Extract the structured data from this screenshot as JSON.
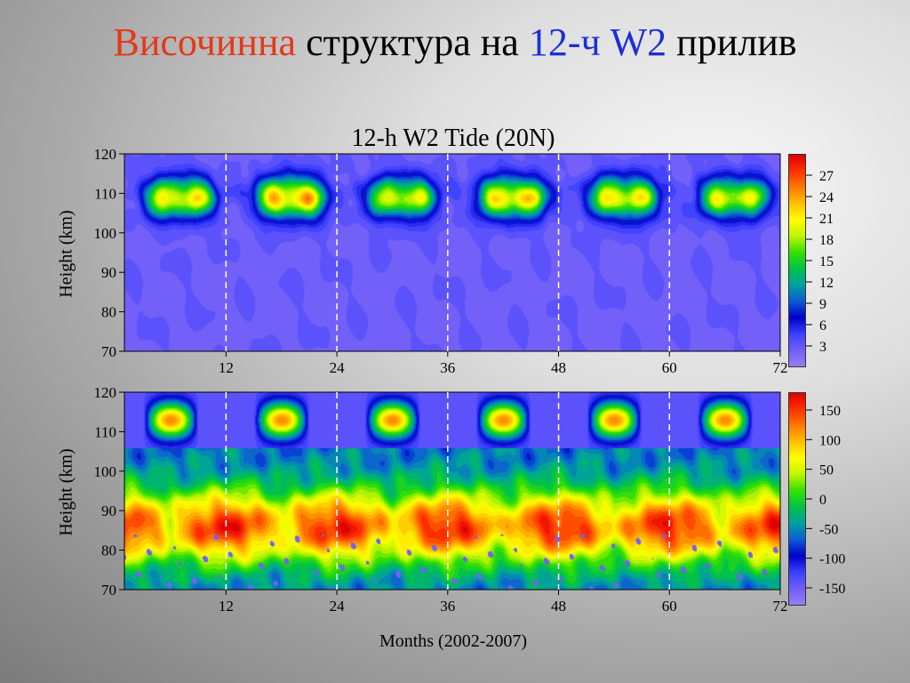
{
  "slide": {
    "title_part1": "Височинна",
    "title_part2": "структура на",
    "title_part3": "12-ч",
    "title_part4": "W2",
    "title_part5": "прилив"
  },
  "chart_data": [
    {
      "type": "heatmap",
      "title": "12-h W2 Tide  (20N)",
      "quantity": "amplitude",
      "xlabel": "",
      "ylabel": "Height  (km)",
      "xlim": [
        1,
        72
      ],
      "ylim": [
        70,
        120
      ],
      "x_ticks": [
        12,
        24,
        36,
        48,
        60,
        72
      ],
      "y_ticks": [
        70,
        80,
        90,
        100,
        110,
        120
      ],
      "colorbar_ticks": [
        3,
        6,
        9,
        12,
        15,
        18,
        21,
        24,
        27
      ],
      "colorbar_range": [
        0,
        30
      ],
      "year_boundaries": [
        12,
        24,
        36,
        48,
        60
      ],
      "peaks": [
        {
          "month": 7,
          "height_km": 109,
          "value": 24
        },
        {
          "month": 19,
          "height_km": 109,
          "value": 27
        },
        {
          "month": 31,
          "height_km": 109,
          "value": 22
        },
        {
          "month": 43,
          "height_km": 109,
          "value": 25
        },
        {
          "month": 55,
          "height_km": 109,
          "value": 24
        },
        {
          "month": 67,
          "height_km": 109,
          "value": 22
        }
      ],
      "colormap": [
        "#9a7cf4",
        "#6f5ef8",
        "#3b3fff",
        "#0000c8",
        "#0d5bd6",
        "#00a0a0",
        "#00c24a",
        "#33e000",
        "#bff400",
        "#ffff00",
        "#ffc000",
        "#ff7a00",
        "#ff3000",
        "#e00000"
      ]
    },
    {
      "type": "heatmap",
      "title": "",
      "quantity": "phase",
      "xlabel": "Months  (2002-2007)",
      "ylabel": "Height  (km)",
      "xlim": [
        1,
        72
      ],
      "ylim": [
        70,
        120
      ],
      "x_ticks": [
        12,
        24,
        36,
        48,
        60,
        72
      ],
      "y_ticks": [
        70,
        80,
        90,
        100,
        110,
        120
      ],
      "colorbar_ticks": [
        150,
        100,
        50,
        0,
        -50,
        -100,
        -150
      ],
      "colorbar_range": [
        -180,
        180
      ],
      "year_boundaries": [
        12,
        24,
        36,
        48,
        60
      ],
      "colormap": [
        "#9a7cf4",
        "#6f5ef8",
        "#3b3fff",
        "#0000c8",
        "#0d5bd6",
        "#00a0a0",
        "#00c24a",
        "#33e000",
        "#bff400",
        "#ffff00",
        "#ffc000",
        "#ff7a00",
        "#ff3000",
        "#e00000"
      ]
    }
  ]
}
